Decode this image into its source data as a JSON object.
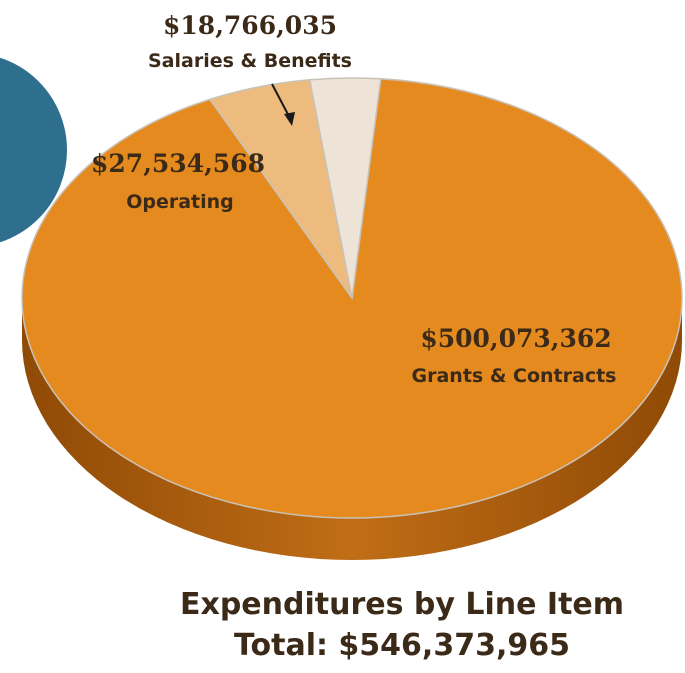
{
  "chart_data": {
    "type": "pie",
    "title": "Expenditures by Line Item",
    "total_label": "Total: $546,373,965",
    "slices": [
      {
        "category": "Grants & Contracts",
        "value": 500073362,
        "value_label": "$500,073,362",
        "color": "#E58A1F"
      },
      {
        "category": "Operating",
        "value": 27534568,
        "value_label": "$27,534,568",
        "color": "#EDBB7E"
      },
      {
        "category": "Salaries & Benefits",
        "value": 18766035,
        "value_label": "$18,766,035",
        "color": "#EDE3D6"
      }
    ]
  },
  "colors": {
    "side_dark": "#9C5207",
    "side_mid": "#B56312",
    "partial_circle": "#2E6F8E",
    "text": "#3b2a18"
  }
}
